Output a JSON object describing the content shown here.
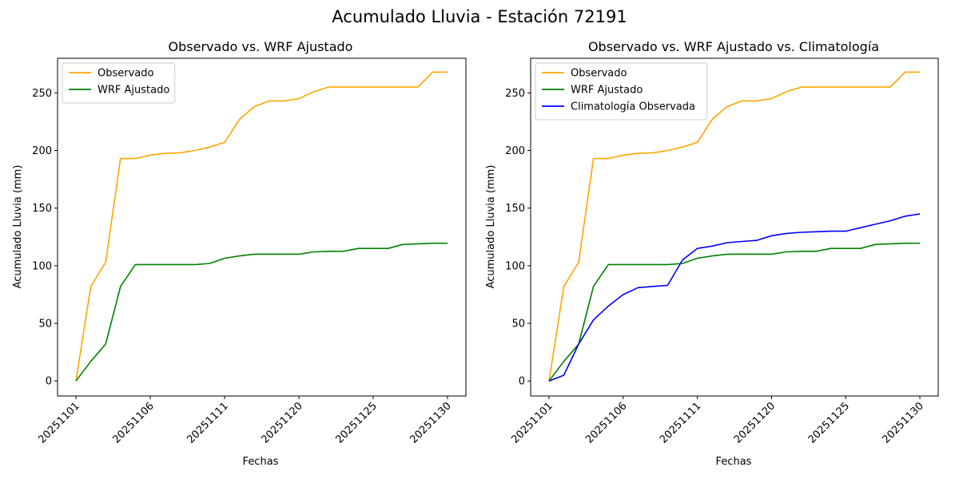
{
  "figure": {
    "suptitle": "Acumulado Lluvia - Estación 72191"
  },
  "chart_data": [
    {
      "type": "line",
      "title": "Observado vs. WRF Ajustado",
      "xlabel": "Fechas",
      "ylabel": "Acumulado Lluvia (mm)",
      "ylim": [
        -13,
        280
      ],
      "yticks": [
        0,
        50,
        100,
        150,
        200,
        250
      ],
      "xticks": [
        "20251101",
        "20251106",
        "20251111",
        "20251120",
        "20251125",
        "20251130"
      ],
      "xtick_index": [
        0,
        5,
        10,
        15,
        20,
        25
      ],
      "n_points": 26,
      "legend": "top-left",
      "grid": false,
      "series": [
        {
          "name": "Observado",
          "color": "#ffa500",
          "values": [
            0,
            82,
            103,
            193,
            193,
            196,
            197.5,
            198,
            200,
            203,
            207,
            227,
            238,
            243,
            243,
            245,
            251,
            255,
            255,
            255,
            255,
            255,
            255,
            255,
            268,
            268
          ]
        },
        {
          "name": "WRF Ajustado",
          "color": "#008000",
          "values": [
            0,
            17,
            32,
            82,
            101,
            101,
            101,
            101,
            101,
            102,
            106.5,
            108.5,
            110,
            110,
            110,
            110,
            112,
            112.5,
            112.5,
            115,
            115,
            115,
            118.5,
            119,
            119.5,
            119.5
          ]
        }
      ]
    },
    {
      "type": "line",
      "title": "Observado vs. WRF Ajustado vs. Climatología",
      "xlabel": "Fechas",
      "ylabel": "Acumulado Lluvia (mm)",
      "ylim": [
        -13,
        280
      ],
      "yticks": [
        0,
        50,
        100,
        150,
        200,
        250
      ],
      "xticks": [
        "20251101",
        "20251106",
        "20251111",
        "20251120",
        "20251125",
        "20251130"
      ],
      "xtick_index": [
        0,
        5,
        10,
        15,
        20,
        25
      ],
      "n_points": 26,
      "legend": "top-left",
      "grid": false,
      "series": [
        {
          "name": "Observado",
          "color": "#ffa500",
          "values": [
            0,
            82,
            103,
            193,
            193,
            196,
            197.5,
            198,
            200,
            203,
            207,
            227,
            238,
            243,
            243,
            245,
            251,
            255,
            255,
            255,
            255,
            255,
            255,
            255,
            268,
            268
          ]
        },
        {
          "name": "WRF Ajustado",
          "color": "#008000",
          "values": [
            0,
            17,
            32,
            82,
            101,
            101,
            101,
            101,
            101,
            102,
            106.5,
            108.5,
            110,
            110,
            110,
            110,
            112,
            112.5,
            112.5,
            115,
            115,
            115,
            118.5,
            119,
            119.5,
            119.5
          ]
        },
        {
          "name": "Climatología Observada",
          "color": "#0000ff",
          "values": [
            0,
            5,
            32,
            53,
            65,
            75,
            81,
            82,
            83,
            105,
            115,
            117,
            120,
            121,
            122,
            126,
            128,
            129,
            129.5,
            130,
            130,
            133,
            136,
            139,
            143,
            145
          ]
        }
      ]
    }
  ]
}
